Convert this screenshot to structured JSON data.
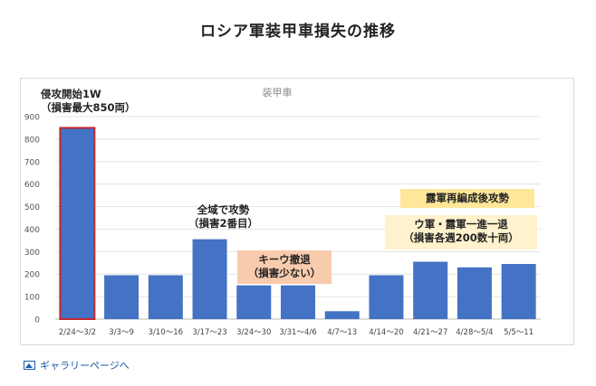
{
  "page": {
    "title": "ロシア軍装甲車損失の推移",
    "gallery_link": "ギャラリーページへ",
    "gallery_icon": "image-icon"
  },
  "chart_data": {
    "type": "bar",
    "title": "装甲車",
    "xlabel": "",
    "ylabel": "",
    "categories": [
      "2/24〜3/2",
      "3/3〜9",
      "3/10〜16",
      "3/17〜23",
      "3/24〜30",
      "3/31〜4/6",
      "4/7〜13",
      "4/14〜20",
      "4/21〜27",
      "4/28〜5/4",
      "5/5〜11"
    ],
    "values": [
      850,
      195,
      195,
      355,
      150,
      150,
      35,
      195,
      255,
      230,
      245
    ],
    "ylim": [
      0,
      900
    ],
    "yticks": [
      0,
      100,
      200,
      300,
      400,
      500,
      600,
      700,
      800,
      900
    ],
    "grid": true,
    "bar_color": "#4472c4",
    "highlight": {
      "index": 0,
      "border_color": "#c0282d"
    },
    "annotations": [
      {
        "id": "first-week",
        "lines": [
          "侵攻開始1W",
          "（損害最大850両）"
        ],
        "box_color": ""
      },
      {
        "id": "full-offensive",
        "lines": [
          "全域で攻勢",
          "（損害2番目）"
        ],
        "box_color": ""
      },
      {
        "id": "kyiv-retreat",
        "lines": [
          "キーウ撤退",
          "（損害少ない）"
        ],
        "box_color": "#f8cbad"
      },
      {
        "id": "reorganize",
        "lines": [
          "露軍再編成後攻勢"
        ],
        "box_color": "#ffe699"
      },
      {
        "id": "back-and-forth",
        "lines": [
          "ウ軍・露軍一進一退",
          "（損害各週200数十両）"
        ],
        "box_color": "#fff2cc"
      }
    ]
  }
}
